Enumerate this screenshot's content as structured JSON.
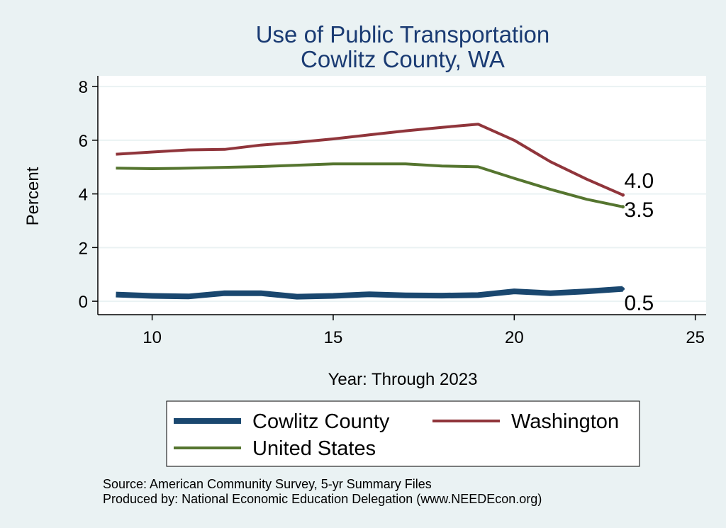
{
  "chart_data": {
    "type": "line",
    "title": "Use of Public Transportation",
    "subtitle": "Cowlitz County, WA",
    "xlabel": "Year: Through 2023",
    "ylabel": "Percent",
    "xlim": [
      8.5,
      25.3
    ],
    "ylim": [
      -0.5,
      8.4
    ],
    "xticks": [
      10,
      15,
      20,
      25
    ],
    "yticks": [
      0,
      2,
      4,
      6,
      8
    ],
    "grid": true,
    "x": [
      9,
      10,
      11,
      12,
      13,
      14,
      15,
      16,
      17,
      18,
      19,
      20,
      21,
      22,
      23
    ],
    "series": [
      {
        "name": "Cowlitz County",
        "color": "#1a476f",
        "values": [
          0.25,
          0.2,
          0.18,
          0.3,
          0.3,
          0.17,
          0.2,
          0.26,
          0.22,
          0.21,
          0.23,
          0.37,
          0.3,
          0.37,
          0.46
        ],
        "end_label": "0.5"
      },
      {
        "name": "Washington",
        "color": "#90353b",
        "values": [
          5.48,
          5.56,
          5.64,
          5.66,
          5.82,
          5.92,
          6.05,
          6.2,
          6.35,
          6.48,
          6.6,
          6.0,
          5.2,
          4.55,
          3.96
        ],
        "end_label": "4.0"
      },
      {
        "name": "United States",
        "color": "#55752f",
        "values": [
          4.96,
          4.94,
          4.96,
          4.99,
          5.02,
          5.07,
          5.12,
          5.12,
          5.12,
          5.04,
          5.01,
          4.58,
          4.17,
          3.8,
          3.52
        ],
        "end_label": "3.5"
      }
    ],
    "legend": {
      "position": "bottom",
      "items": [
        "Cowlitz County",
        "Washington",
        "United States"
      ]
    },
    "notes": [
      "Source: American Community Survey, 5-yr Summary Files",
      "Produced by: National Economic Education Delegation (www.NEEDEcon.org)"
    ]
  }
}
